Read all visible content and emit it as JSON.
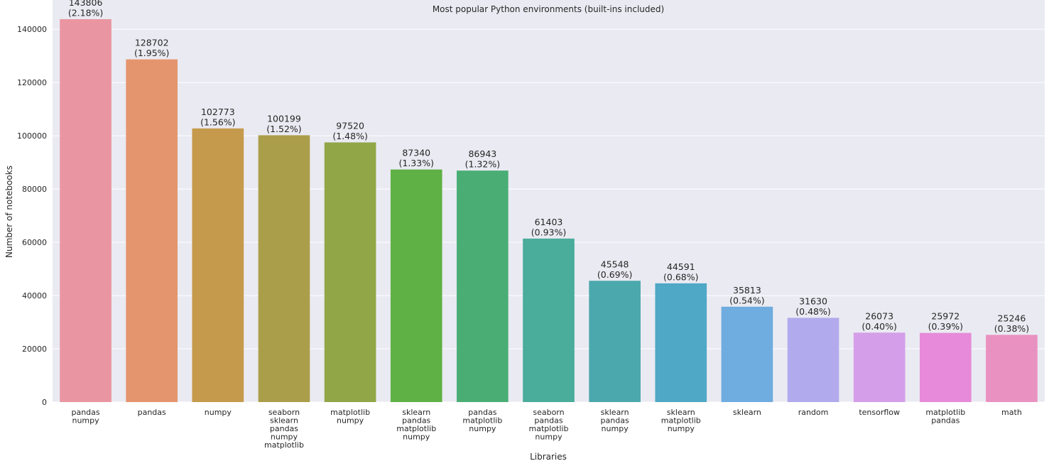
{
  "chart_data": {
    "type": "bar",
    "title": "Most popular Python environments (built-ins included)",
    "xlabel": "Libraries",
    "ylabel": "Number of notebooks",
    "ylim": [
      0,
      151000
    ],
    "yticks": [
      0,
      20000,
      40000,
      60000,
      80000,
      100000,
      120000,
      140000
    ],
    "grid": true,
    "categories": [
      [
        "pandas",
        "numpy"
      ],
      [
        "pandas"
      ],
      [
        "numpy"
      ],
      [
        "seaborn",
        "sklearn",
        "pandas",
        "numpy",
        "matplotlib"
      ],
      [
        "matplotlib",
        "numpy"
      ],
      [
        "sklearn",
        "pandas",
        "matplotlib",
        "numpy"
      ],
      [
        "pandas",
        "matplotlib",
        "numpy"
      ],
      [
        "seaborn",
        "pandas",
        "matplotlib",
        "numpy"
      ],
      [
        "sklearn",
        "pandas",
        "numpy"
      ],
      [
        "sklearn",
        "matplotlib",
        "numpy"
      ],
      [
        "sklearn"
      ],
      [
        "random"
      ],
      [
        "tensorflow"
      ],
      [
        "matplotlib",
        "pandas"
      ],
      [
        "math"
      ]
    ],
    "values": [
      143806,
      128702,
      102773,
      100199,
      97520,
      87340,
      86943,
      61403,
      45548,
      44591,
      35813,
      31630,
      26073,
      25972,
      25246
    ],
    "percent_labels": [
      "(2.18%)",
      "(1.95%)",
      "(1.56%)",
      "(1.52%)",
      "(1.48%)",
      "(1.33%)",
      "(1.32%)",
      "(0.93%)",
      "(0.69%)",
      "(0.68%)",
      "(0.54%)",
      "(0.48%)",
      "(0.40%)",
      "(0.39%)",
      "(0.38%)"
    ],
    "colors": [
      "#ea96a2",
      "#e5956d",
      "#c59a4c",
      "#ab9e4a",
      "#91a646",
      "#5fb145",
      "#4aae74",
      "#4aac9a",
      "#4ba8ad",
      "#4ea8c6",
      "#6facdf",
      "#b1aaec",
      "#d49ee9",
      "#e68ad9",
      "#e991c0"
    ],
    "background": "#eaeaf2",
    "gridColor": "#ffffff"
  }
}
